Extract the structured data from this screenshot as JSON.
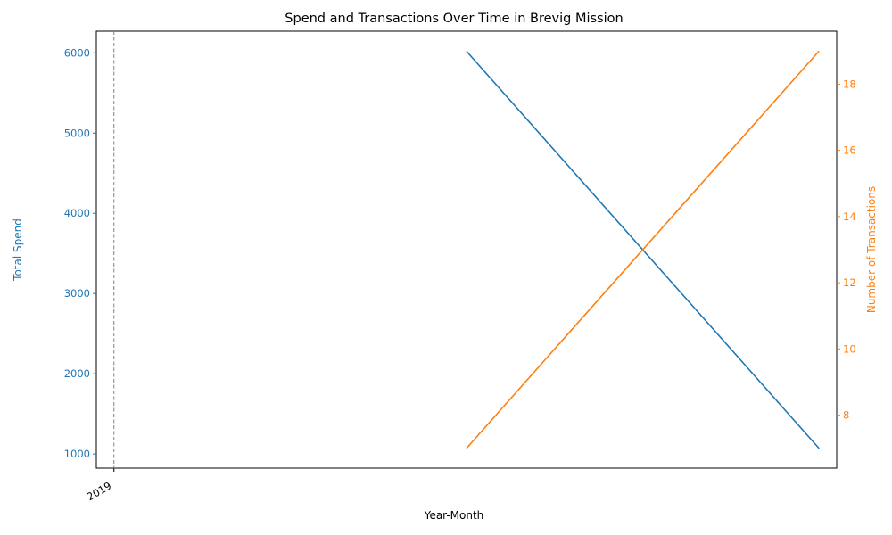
{
  "chart_data": {
    "type": "line",
    "title": "Spend and Transactions Over Time in Brevig Mission",
    "xlabel": "Year-Month",
    "x_ticks": [
      {
        "label": "2019",
        "value": 0
      }
    ],
    "xlim": [
      -0.05,
      2.05
    ],
    "vline": {
      "x": 0,
      "style": "dashed"
    },
    "left_axis": {
      "label": "Total Spend",
      "color": "#1f77b4",
      "ylim": [
        824,
        6270
      ],
      "ticks": [
        1000,
        2000,
        3000,
        4000,
        5000,
        6000
      ]
    },
    "right_axis": {
      "label": "Number of Transactions",
      "color": "#ff7f0e",
      "ylim": [
        6.4,
        19.6
      ],
      "ticks": [
        8,
        10,
        12,
        14,
        16,
        18
      ]
    },
    "series": [
      {
        "axis": "left",
        "color": "#1f77b4",
        "x": [
          1,
          2
        ],
        "values": [
          6020,
          1070
        ]
      },
      {
        "axis": "right",
        "color": "#ff7f0e",
        "x": [
          1,
          2
        ],
        "values": [
          7,
          19
        ]
      }
    ],
    "grid": false
  }
}
